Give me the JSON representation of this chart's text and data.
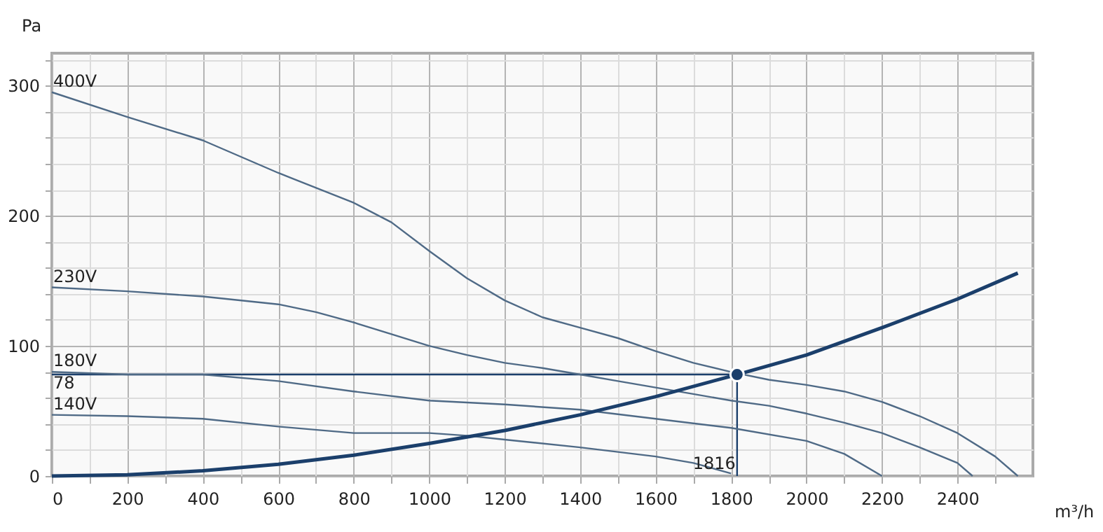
{
  "chart_data": {
    "type": "line",
    "xlabel": "m³/h",
    "ylabel": "Pa",
    "xlim": [
      0,
      2600
    ],
    "ylim": [
      0,
      325
    ],
    "grid": true,
    "legend": false,
    "xticks": [
      0,
      {
        "value": 100,
        "label": null
      },
      200,
      {
        "value": 300,
        "label": null
      },
      400,
      {
        "value": 500,
        "label": null
      },
      600,
      {
        "value": 700,
        "label": null
      },
      800,
      {
        "value": 900,
        "label": null
      },
      1000,
      {
        "value": 1100,
        "label": null
      },
      1200,
      {
        "value": 1300,
        "label": null
      },
      1400,
      {
        "value": 1500,
        "label": null
      },
      1600,
      {
        "value": 1700,
        "label": null
      },
      1800,
      {
        "value": 1900,
        "label": null
      },
      2000,
      {
        "value": 2100,
        "label": null
      },
      2200,
      {
        "value": 2300,
        "label": null
      },
      2400,
      {
        "value": 2500,
        "label": null
      }
    ],
    "yticks": [
      0,
      {
        "value": 20,
        "label": null
      },
      {
        "value": 40,
        "label": null
      },
      {
        "value": 60,
        "label": null
      },
      {
        "value": 80,
        "label": null
      },
      100,
      {
        "value": 120,
        "label": null
      },
      {
        "value": 140,
        "label": null
      },
      {
        "value": 160,
        "label": null
      },
      {
        "value": 180,
        "label": null
      },
      200,
      {
        "value": 220,
        "label": null
      },
      {
        "value": 240,
        "label": null
      },
      {
        "value": 260,
        "label": null
      },
      {
        "value": 280,
        "label": null
      },
      300,
      {
        "value": 320,
        "label": null
      }
    ],
    "series": [
      {
        "name": "400V",
        "color": "#4f6a86",
        "x": [
          0,
          200,
          400,
          600,
          800,
          900,
          1000,
          1100,
          1200,
          1300,
          1400,
          1500,
          1600,
          1700,
          1800,
          1900,
          2000,
          2100,
          2200,
          2300,
          2400,
          2500,
          2560
        ],
        "values": [
          295,
          276,
          258,
          233,
          210,
          195,
          173,
          152,
          135,
          122,
          114,
          106,
          96,
          87,
          80,
          74,
          70,
          65,
          57,
          46,
          33,
          15,
          0
        ]
      },
      {
        "name": "230V",
        "color": "#4f6a86",
        "x": [
          0,
          200,
          400,
          600,
          700,
          800,
          900,
          1000,
          1100,
          1200,
          1300,
          1400,
          1500,
          1600,
          1700,
          1800,
          1900,
          2000,
          2100,
          2200,
          2300,
          2400,
          2440
        ],
        "values": [
          145,
          142,
          138,
          132,
          126,
          118,
          109,
          100,
          93,
          87,
          83,
          78,
          73,
          68,
          63,
          58,
          54,
          48,
          41,
          33,
          22,
          10,
          0
        ]
      },
      {
        "name": "180V",
        "color": "#4f6a86",
        "x": [
          0,
          200,
          400,
          600,
          800,
          1000,
          1200,
          1400,
          1600,
          1800,
          2000,
          2100,
          2200
        ],
        "values": [
          80,
          78,
          78,
          73,
          65,
          58,
          55,
          51,
          44,
          37,
          27,
          17,
          0
        ]
      },
      {
        "name": "140V",
        "color": "#4f6a86",
        "x": [
          0,
          200,
          400,
          600,
          800,
          1000,
          1100,
          1200,
          1400,
          1600,
          1700,
          1800
        ],
        "values": [
          47,
          46,
          44,
          38,
          33,
          33,
          31,
          28,
          22,
          15,
          10,
          2
        ]
      },
      {
        "color": "#1b3f6b",
        "x": [
          0,
          200,
          400,
          600,
          800,
          1000,
          1200,
          1400,
          1600,
          1816,
          2000,
          2200,
          2400,
          2560
        ],
        "values": [
          0,
          1,
          4,
          9,
          16,
          25,
          35,
          47,
          61,
          78,
          93,
          114,
          136,
          156
        ]
      },
      {
        "type": "scatter",
        "color": "#1b3f6b",
        "x": [
          1816
        ],
        "values": [
          78
        ]
      }
    ],
    "annotations": [
      {
        "text": "78",
        "x": 0,
        "y": 78
      },
      {
        "text": "1816",
        "x": 1816,
        "y": 0
      }
    ]
  }
}
